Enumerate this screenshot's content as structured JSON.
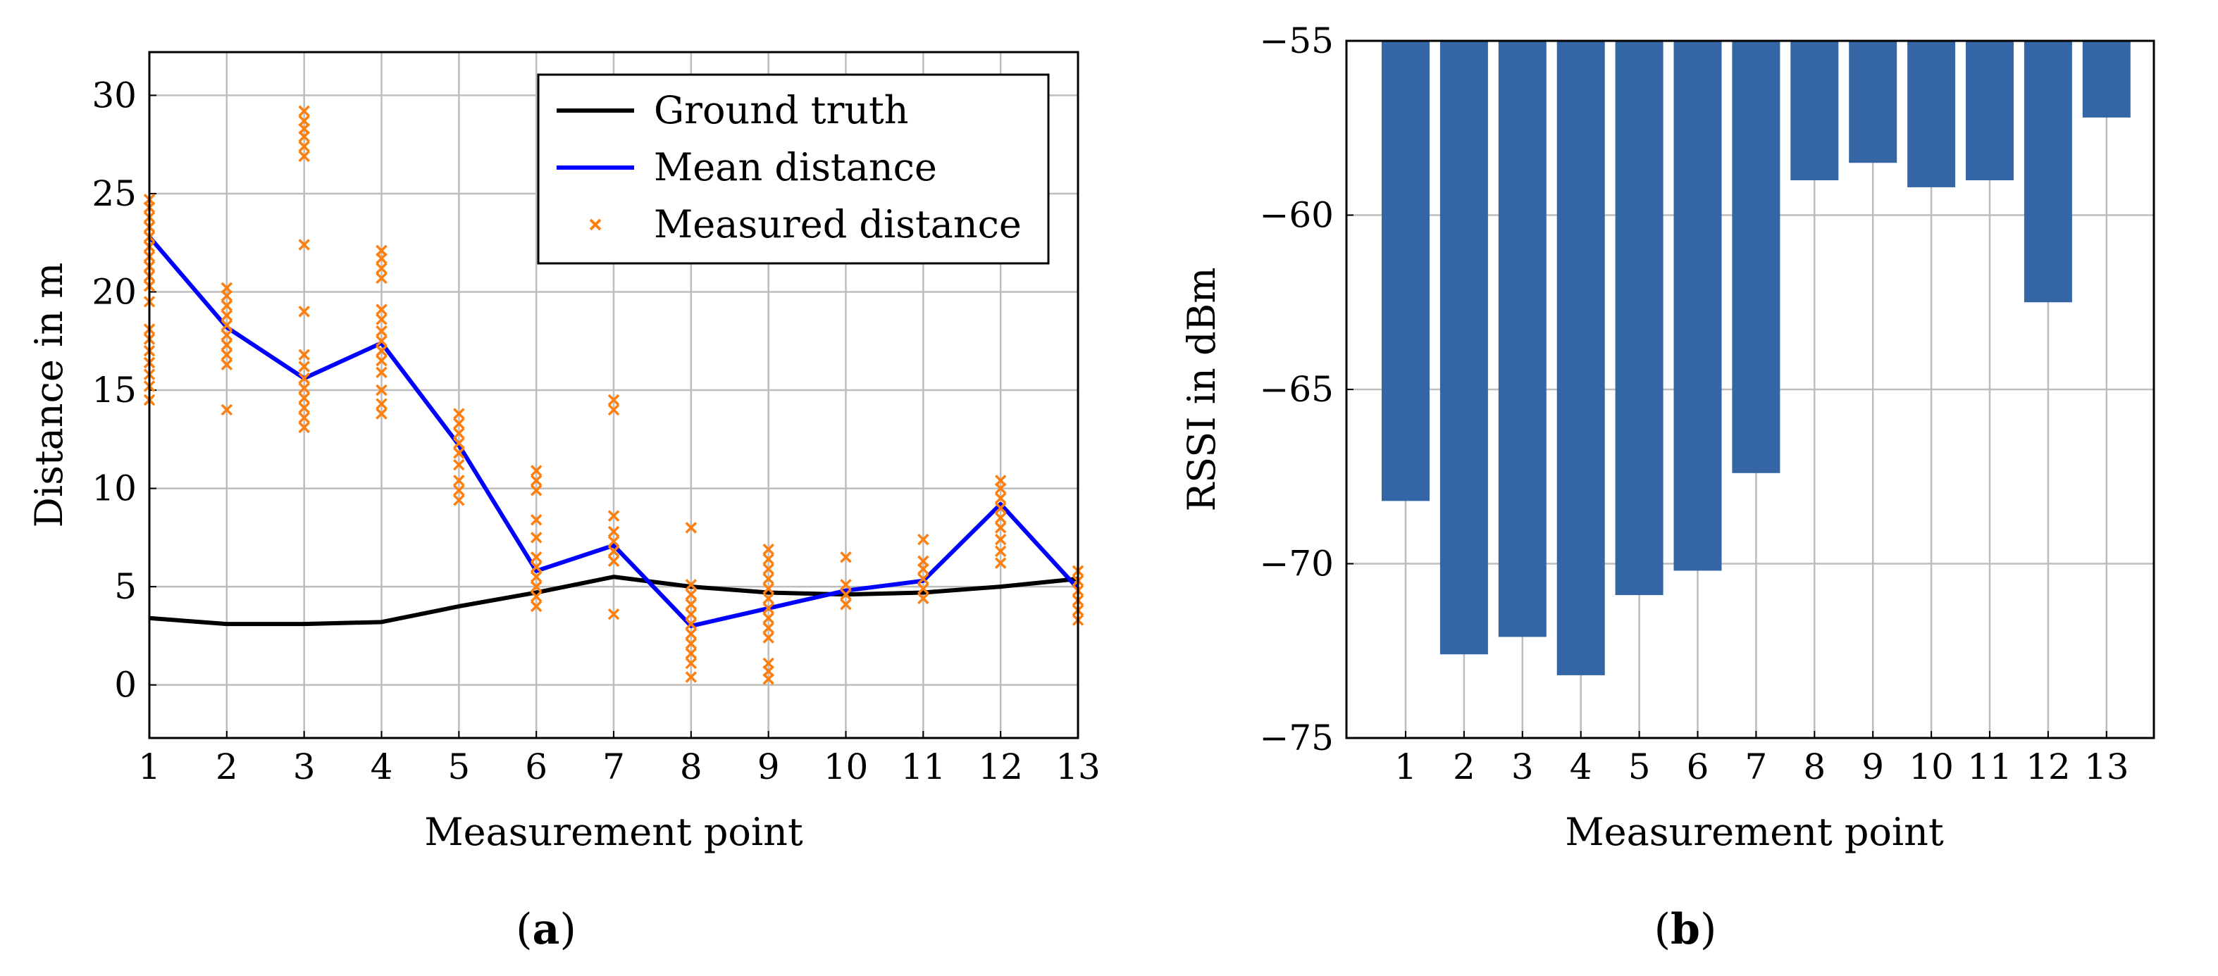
{
  "chart_data": [
    {
      "id": "a",
      "type": "line",
      "caption": {
        "open": "(",
        "letter": "a",
        "close": ")"
      },
      "xlabel": "Measurement point",
      "ylabel": "Distance in m",
      "xlim": [
        1,
        13
      ],
      "ylim": [
        -2.7,
        32.2
      ],
      "xticks": [
        1,
        2,
        3,
        4,
        5,
        6,
        7,
        8,
        9,
        10,
        11,
        12,
        13
      ],
      "xtick_labels": [
        "1",
        "2",
        "3",
        "4",
        "5",
        "6",
        "7",
        "8",
        "9",
        "10",
        "11",
        "12",
        "13"
      ],
      "yticks": [
        0,
        5,
        10,
        15,
        20,
        25,
        30
      ],
      "ytick_labels": [
        "0",
        "5",
        "10",
        "15",
        "20",
        "25",
        "30"
      ],
      "grid": true,
      "legend_position": "top-right",
      "series": [
        {
          "name": "Ground truth",
          "kind": "line",
          "color": "#000000",
          "x": [
            1,
            2,
            3,
            4,
            5,
            6,
            7,
            8,
            9,
            10,
            11,
            12,
            13
          ],
          "y": [
            3.4,
            3.1,
            3.1,
            3.2,
            4.0,
            4.7,
            5.5,
            5.0,
            4.7,
            4.6,
            4.7,
            5.0,
            5.4
          ]
        },
        {
          "name": "Mean distance",
          "kind": "line",
          "color": "#0000ff",
          "x": [
            1,
            2,
            3,
            4,
            5,
            6,
            7,
            8,
            9,
            10,
            11,
            12,
            13
          ],
          "y": [
            22.8,
            18.2,
            15.6,
            17.4,
            12.2,
            5.8,
            7.1,
            3.0,
            3.9,
            4.8,
            5.3,
            9.2,
            4.9
          ]
        },
        {
          "name": "Measured distance",
          "kind": "scatter",
          "color": "#ff7f0e",
          "marker": "x",
          "points": [
            [
              1,
              14.5
            ],
            [
              1,
              15.2
            ],
            [
              1,
              15.8
            ],
            [
              1,
              16.4
            ],
            [
              1,
              17.0
            ],
            [
              1,
              17.6
            ],
            [
              1,
              18.1
            ],
            [
              1,
              19.5
            ],
            [
              1,
              20.3
            ],
            [
              1,
              20.8
            ],
            [
              1,
              21.3
            ],
            [
              1,
              21.8
            ],
            [
              1,
              22.3
            ],
            [
              1,
              22.8
            ],
            [
              1,
              23.3
            ],
            [
              1,
              23.8
            ],
            [
              1,
              24.3
            ],
            [
              1,
              24.7
            ],
            [
              2,
              14.0
            ],
            [
              2,
              16.3
            ],
            [
              2,
              16.8
            ],
            [
              2,
              17.3
            ],
            [
              2,
              17.8
            ],
            [
              2,
              18.3
            ],
            [
              2,
              18.8
            ],
            [
              2,
              19.3
            ],
            [
              2,
              19.8
            ],
            [
              2,
              20.2
            ],
            [
              3,
              13.1
            ],
            [
              3,
              13.6
            ],
            [
              3,
              14.1
            ],
            [
              3,
              14.6
            ],
            [
              3,
              15.1
            ],
            [
              3,
              15.6
            ],
            [
              3,
              16.2
            ],
            [
              3,
              16.8
            ],
            [
              3,
              19.0
            ],
            [
              3,
              22.4
            ],
            [
              3,
              26.9
            ],
            [
              3,
              27.4
            ],
            [
              3,
              27.9
            ],
            [
              3,
              28.3
            ],
            [
              3,
              28.7
            ],
            [
              3,
              29.2
            ],
            [
              4,
              13.8
            ],
            [
              4,
              14.3
            ],
            [
              4,
              15.0
            ],
            [
              4,
              15.9
            ],
            [
              4,
              16.5
            ],
            [
              4,
              17.0
            ],
            [
              4,
              17.5
            ],
            [
              4,
              18.0
            ],
            [
              4,
              18.6
            ],
            [
              4,
              19.1
            ],
            [
              4,
              20.7
            ],
            [
              4,
              21.2
            ],
            [
              4,
              21.7
            ],
            [
              4,
              22.1
            ],
            [
              5,
              9.4
            ],
            [
              5,
              9.9
            ],
            [
              5,
              10.4
            ],
            [
              5,
              11.2
            ],
            [
              5,
              11.8
            ],
            [
              5,
              12.3
            ],
            [
              5,
              12.8
            ],
            [
              5,
              13.3
            ],
            [
              5,
              13.8
            ],
            [
              6,
              4.0
            ],
            [
              6,
              4.5
            ],
            [
              6,
              5.0
            ],
            [
              6,
              5.5
            ],
            [
              6,
              6.0
            ],
            [
              6,
              6.5
            ],
            [
              6,
              7.5
            ],
            [
              6,
              8.4
            ],
            [
              6,
              9.9
            ],
            [
              6,
              10.4
            ],
            [
              6,
              10.9
            ],
            [
              7,
              3.6
            ],
            [
              7,
              6.3
            ],
            [
              7,
              6.8
            ],
            [
              7,
              7.3
            ],
            [
              7,
              7.8
            ],
            [
              7,
              8.6
            ],
            [
              7,
              14.0
            ],
            [
              7,
              14.5
            ],
            [
              8,
              0.4
            ],
            [
              8,
              1.1
            ],
            [
              8,
              1.6
            ],
            [
              8,
              2.1
            ],
            [
              8,
              2.6
            ],
            [
              8,
              3.1
            ],
            [
              8,
              3.6
            ],
            [
              8,
              4.1
            ],
            [
              8,
              4.6
            ],
            [
              8,
              5.1
            ],
            [
              8,
              8.0
            ],
            [
              9,
              0.3
            ],
            [
              9,
              0.7
            ],
            [
              9,
              1.1
            ],
            [
              9,
              2.4
            ],
            [
              9,
              2.9
            ],
            [
              9,
              3.4
            ],
            [
              9,
              3.9
            ],
            [
              9,
              4.4
            ],
            [
              9,
              4.9
            ],
            [
              9,
              5.4
            ],
            [
              9,
              5.9
            ],
            [
              9,
              6.4
            ],
            [
              9,
              6.9
            ],
            [
              10,
              4.1
            ],
            [
              10,
              4.6
            ],
            [
              10,
              5.1
            ],
            [
              10,
              6.5
            ],
            [
              11,
              4.4
            ],
            [
              11,
              4.9
            ],
            [
              11,
              5.4
            ],
            [
              11,
              5.9
            ],
            [
              11,
              6.3
            ],
            [
              11,
              7.4
            ],
            [
              12,
              6.2
            ],
            [
              12,
              6.8
            ],
            [
              12,
              7.4
            ],
            [
              12,
              8.0
            ],
            [
              12,
              8.5
            ],
            [
              12,
              9.0
            ],
            [
              12,
              9.5
            ],
            [
              12,
              10.0
            ],
            [
              12,
              10.4
            ],
            [
              13,
              3.3
            ],
            [
              13,
              3.8
            ],
            [
              13,
              4.3
            ],
            [
              13,
              4.8
            ],
            [
              13,
              5.3
            ],
            [
              13,
              5.8
            ]
          ]
        }
      ]
    },
    {
      "id": "b",
      "type": "bar",
      "caption": {
        "open": "(",
        "letter": "b",
        "close": ")"
      },
      "xlabel": "Measurement point",
      "ylabel": "RSSI in dBm",
      "categories": [
        "1",
        "2",
        "3",
        "4",
        "5",
        "6",
        "7",
        "8",
        "9",
        "10",
        "11",
        "12",
        "13"
      ],
      "values": [
        -68.2,
        -72.6,
        -72.1,
        -73.2,
        -70.9,
        -70.2,
        -67.4,
        -59.0,
        -58.5,
        -59.2,
        -59.0,
        -62.5,
        -57.2
      ],
      "ylim": [
        -75,
        -55
      ],
      "bar_base": -55,
      "yticks": [
        -75,
        -70,
        -65,
        -60,
        -55
      ],
      "ytick_labels": [
        "−75",
        "−70",
        "−65",
        "−60",
        "−55"
      ],
      "color": "#3465a4",
      "grid": true
    }
  ]
}
